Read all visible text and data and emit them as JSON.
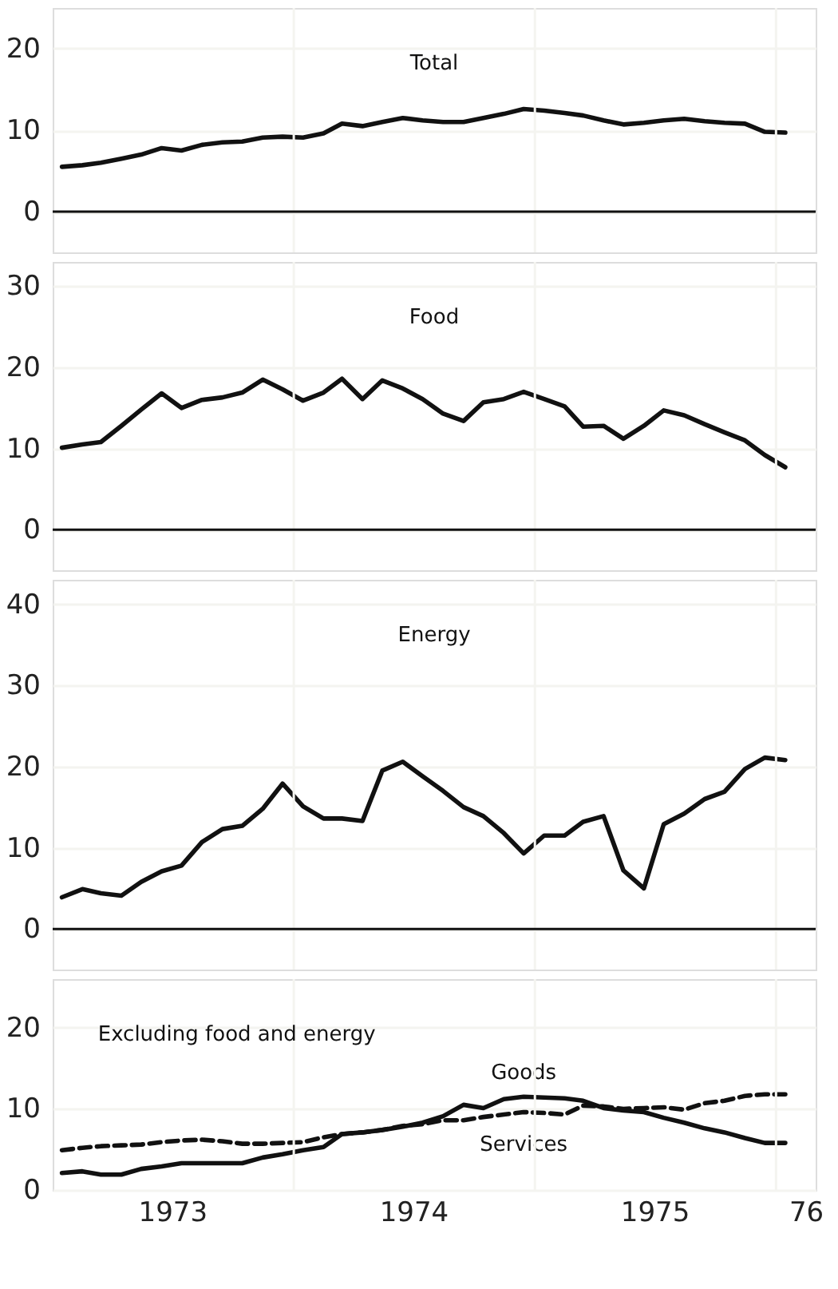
{
  "chart_data": [
    {
      "type": "line",
      "tick_labels": "y",
      "grid": true,
      "xlim": [
        "1973-01-01",
        "1976-03-01"
      ],
      "ylim": [
        -5,
        25
      ],
      "yticks": [
        0,
        10,
        20
      ],
      "xticks": [
        {
          "value": "1974-01-01",
          "label": null
        },
        {
          "value": "1975-01-01",
          "label": null
        },
        {
          "value": "1976-01-01",
          "label": null
        }
      ],
      "x": [
        "1973-01-15",
        "1973-02-15",
        "1973-03-15",
        "1973-04-15",
        "1973-05-15",
        "1973-06-15",
        "1973-07-15",
        "1973-08-15",
        "1973-09-15",
        "1973-10-15",
        "1973-11-15",
        "1973-12-15",
        "1974-01-15",
        "1974-02-15",
        "1974-03-15",
        "1974-04-15",
        "1974-05-15",
        "1974-06-15",
        "1974-07-15",
        "1974-08-15",
        "1974-09-15",
        "1974-10-15",
        "1974-11-15",
        "1974-12-15",
        "1975-01-15",
        "1975-02-15",
        "1975-03-15",
        "1975-04-15",
        "1975-05-15",
        "1975-06-15",
        "1975-07-15",
        "1975-08-15",
        "1975-09-15",
        "1975-10-15",
        "1975-11-15",
        "1975-12-15",
        "1976-01-15"
      ],
      "series": [
        {
          "color": "#111111",
          "line_style": "solid",
          "values": [
            5.5,
            5.7,
            6.0,
            6.5,
            7.0,
            7.8,
            7.5,
            8.2,
            8.5,
            8.6,
            9.1,
            9.2,
            9.1,
            9.6,
            10.8,
            10.5,
            11.0,
            11.5,
            11.2,
            11.0,
            11.0,
            11.5,
            12.0,
            12.6,
            12.4,
            12.1,
            11.8,
            11.2,
            10.7,
            10.9,
            11.2,
            11.4,
            11.1,
            10.9,
            10.8,
            9.8,
            9.7
          ]
        }
      ],
      "ref_lines": [
        {
          "axis": "y",
          "value": 0,
          "color": "#111111"
        }
      ],
      "title": "Total"
    },
    {
      "type": "line",
      "tick_labels": "y",
      "grid": true,
      "xlim": [
        "1973-01-01",
        "1976-03-01"
      ],
      "ylim": [
        -5,
        33
      ],
      "yticks": [
        0,
        10,
        20,
        30
      ],
      "xticks": [
        {
          "value": "1974-01-01",
          "label": null
        },
        {
          "value": "1975-01-01",
          "label": null
        },
        {
          "value": "1976-01-01",
          "label": null
        }
      ],
      "x": [
        "1973-01-15",
        "1973-02-15",
        "1973-03-15",
        "1973-04-15",
        "1973-05-15",
        "1973-06-15",
        "1973-07-15",
        "1973-08-15",
        "1973-09-15",
        "1973-10-15",
        "1973-11-15",
        "1973-12-15",
        "1974-01-15",
        "1974-02-15",
        "1974-03-15",
        "1974-04-15",
        "1974-05-15",
        "1974-06-15",
        "1974-07-15",
        "1974-08-15",
        "1974-09-15",
        "1974-10-15",
        "1974-11-15",
        "1974-12-15",
        "1975-01-15",
        "1975-02-15",
        "1975-03-15",
        "1975-04-15",
        "1975-05-15",
        "1975-06-15",
        "1975-07-15",
        "1975-08-15",
        "1975-09-15",
        "1975-10-15",
        "1975-11-15",
        "1975-12-15",
        "1976-01-15"
      ],
      "series": [
        {
          "color": "#111111",
          "line_style": "solid",
          "values": [
            10.1,
            10.5,
            10.8,
            12.8,
            14.8,
            16.8,
            15.0,
            16.0,
            16.3,
            16.9,
            18.5,
            17.3,
            15.9,
            16.9,
            18.6,
            16.1,
            18.4,
            17.4,
            16.1,
            14.3,
            13.4,
            15.7,
            16.1,
            17.0,
            16.1,
            15.2,
            12.7,
            12.8,
            11.2,
            12.8,
            14.7,
            14.1,
            13.0,
            12.0,
            11.0,
            9.2,
            7.7
          ]
        }
      ],
      "ref_lines": [
        {
          "axis": "y",
          "value": 0,
          "color": "#111111"
        }
      ],
      "title": "Food"
    },
    {
      "type": "line",
      "tick_labels": "y",
      "grid": true,
      "xlim": [
        "1973-01-01",
        "1976-03-01"
      ],
      "ylim": [
        -5,
        43
      ],
      "yticks": [
        0,
        10,
        20,
        30,
        40
      ],
      "xticks": [
        {
          "value": "1974-01-01",
          "label": null
        },
        {
          "value": "1975-01-01",
          "label": null
        },
        {
          "value": "1976-01-01",
          "label": null
        }
      ],
      "x": [
        "1973-01-15",
        "1973-02-15",
        "1973-03-15",
        "1973-04-15",
        "1973-05-15",
        "1973-06-15",
        "1973-07-15",
        "1973-08-15",
        "1973-09-15",
        "1973-10-15",
        "1973-11-15",
        "1973-12-15",
        "1974-01-15",
        "1974-02-15",
        "1974-03-15",
        "1974-04-15",
        "1974-05-15",
        "1974-06-15",
        "1974-07-15",
        "1974-08-15",
        "1974-09-15",
        "1974-10-15",
        "1974-11-15",
        "1974-12-15",
        "1975-01-15",
        "1975-02-15",
        "1975-03-15",
        "1975-04-15",
        "1975-05-15",
        "1975-06-15",
        "1975-07-15",
        "1975-08-15",
        "1975-09-15",
        "1975-10-15",
        "1975-11-15",
        "1975-12-15",
        "1976-01-15"
      ],
      "series": [
        {
          "color": "#111111",
          "line_style": "solid",
          "values": [
            3.9,
            4.9,
            4.4,
            4.1,
            5.8,
            7.1,
            7.8,
            10.7,
            12.3,
            12.7,
            14.8,
            17.9,
            15.1,
            13.6,
            13.6,
            13.3,
            19.5,
            20.6,
            18.8,
            17.0,
            15.0,
            13.9,
            11.8,
            9.3,
            11.5,
            11.5,
            13.2,
            13.9,
            7.2,
            5.0,
            12.9,
            14.2,
            16.0,
            16.9,
            19.7,
            21.1,
            20.8
          ]
        }
      ],
      "ref_lines": [
        {
          "axis": "y",
          "value": 0,
          "color": "#111111"
        }
      ],
      "title": "Energy"
    },
    {
      "type": "line",
      "grid": true,
      "xlim": [
        "1973-01-01",
        "1976-03-01"
      ],
      "ylim": [
        0,
        26
      ],
      "yticks": [
        0,
        10,
        20
      ],
      "xticks": [
        {
          "value": "1973-07-01",
          "label": "1973"
        },
        {
          "value": "1974-01-01",
          "label": null
        },
        {
          "value": "1974-07-01",
          "label": "1974"
        },
        {
          "value": "1975-01-01",
          "label": null
        },
        {
          "value": "1975-07-01",
          "label": "1975"
        },
        {
          "value": "1976-01-01",
          "label": null
        },
        {
          "value": "1976-02-15",
          "label": "76"
        }
      ],
      "x": [
        "1973-01-15",
        "1973-02-15",
        "1973-03-15",
        "1973-04-15",
        "1973-05-15",
        "1973-06-15",
        "1973-07-15",
        "1973-08-15",
        "1973-09-15",
        "1973-10-15",
        "1973-11-15",
        "1973-12-15",
        "1974-01-15",
        "1974-02-15",
        "1974-03-15",
        "1974-04-15",
        "1974-05-15",
        "1974-06-15",
        "1974-07-15",
        "1974-08-15",
        "1974-09-15",
        "1974-10-15",
        "1974-11-15",
        "1974-12-15",
        "1975-01-15",
        "1975-02-15",
        "1975-03-15",
        "1975-04-15",
        "1975-05-15",
        "1975-06-15",
        "1975-07-15",
        "1975-08-15",
        "1975-09-15",
        "1975-10-15",
        "1975-11-15",
        "1975-12-15",
        "1976-01-15"
      ],
      "series": [
        {
          "name": "Goods",
          "color": "#111111",
          "line_style": "solid",
          "values": [
            2.1,
            2.3,
            1.9,
            1.9,
            2.6,
            2.9,
            3.3,
            3.3,
            3.3,
            3.3,
            4.0,
            4.4,
            4.9,
            5.3,
            6.9,
            7.1,
            7.4,
            7.8,
            8.3,
            9.1,
            10.5,
            10.1,
            11.2,
            11.5,
            11.4,
            11.3,
            11.0,
            10.1,
            9.8,
            9.6,
            8.9,
            8.3,
            7.6,
            7.1,
            6.4,
            5.8,
            5.8
          ]
        },
        {
          "name": "Services",
          "color": "#111111",
          "line_style": "dashed",
          "values": [
            4.9,
            5.2,
            5.4,
            5.5,
            5.6,
            5.9,
            6.1,
            6.2,
            6.0,
            5.7,
            5.7,
            5.8,
            5.9,
            6.5,
            6.9,
            7.1,
            7.4,
            7.9,
            8.1,
            8.6,
            8.6,
            9.0,
            9.3,
            9.6,
            9.5,
            9.3,
            10.4,
            10.3,
            10.0,
            10.1,
            10.2,
            9.9,
            10.7,
            11.0,
            11.6,
            11.8,
            11.8
          ]
        }
      ],
      "subtitle": "Excluding food and energy"
    }
  ]
}
